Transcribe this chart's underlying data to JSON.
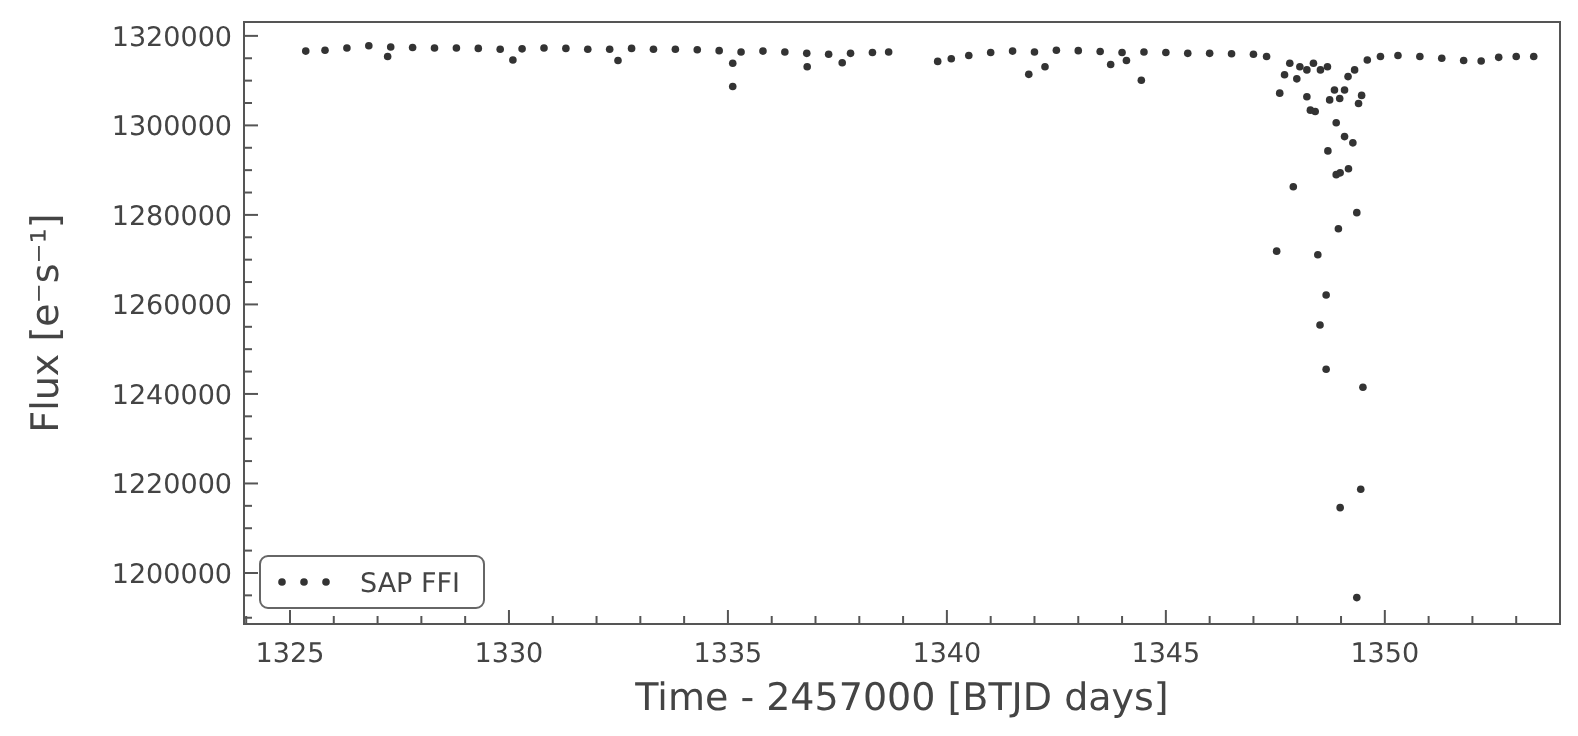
{
  "chart_data": {
    "type": "scatter",
    "xlabel": "Time - 2457000 [BTJD days]",
    "ylabel": "Flux [e⁻s⁻¹]",
    "xlim": [
      1323.95,
      1354.0
    ],
    "ylim": [
      1188600,
      1323100
    ],
    "xticks": [
      {
        "value": 1324,
        "label": null
      },
      1325,
      {
        "value": 1326,
        "label": null
      },
      {
        "value": 1327,
        "label": null
      },
      {
        "value": 1328,
        "label": null
      },
      {
        "value": 1329,
        "label": null
      },
      1330,
      {
        "value": 1331,
        "label": null
      },
      {
        "value": 1332,
        "label": null
      },
      {
        "value": 1333,
        "label": null
      },
      {
        "value": 1334,
        "label": null
      },
      1335,
      {
        "value": 1336,
        "label": null
      },
      {
        "value": 1337,
        "label": null
      },
      {
        "value": 1338,
        "label": null
      },
      {
        "value": 1339,
        "label": null
      },
      1340,
      {
        "value": 1341,
        "label": null
      },
      {
        "value": 1342,
        "label": null
      },
      {
        "value": 1343,
        "label": null
      },
      {
        "value": 1344,
        "label": null
      },
      1345,
      {
        "value": 1346,
        "label": null
      },
      {
        "value": 1347,
        "label": null
      },
      {
        "value": 1348,
        "label": null
      },
      {
        "value": 1349,
        "label": null
      },
      1350,
      {
        "value": 1351,
        "label": null
      },
      {
        "value": 1352,
        "label": null
      },
      {
        "value": 1353,
        "label": null
      },
      {
        "value": 1354,
        "label": null
      }
    ],
    "yticks": [
      {
        "value": 1190000,
        "label": null
      },
      {
        "value": 1195000,
        "label": null
      },
      1200000,
      {
        "value": 1205000,
        "label": null
      },
      {
        "value": 1210000,
        "label": null
      },
      {
        "value": 1215000,
        "label": null
      },
      1220000,
      {
        "value": 1225000,
        "label": null
      },
      {
        "value": 1230000,
        "label": null
      },
      {
        "value": 1235000,
        "label": null
      },
      1240000,
      {
        "value": 1245000,
        "label": null
      },
      {
        "value": 1250000,
        "label": null
      },
      {
        "value": 1255000,
        "label": null
      },
      1260000,
      {
        "value": 1265000,
        "label": null
      },
      {
        "value": 1270000,
        "label": null
      },
      {
        "value": 1275000,
        "label": null
      },
      1280000,
      {
        "value": 1285000,
        "label": null
      },
      {
        "value": 1290000,
        "label": null
      },
      {
        "value": 1295000,
        "label": null
      },
      1300000,
      {
        "value": 1305000,
        "label": null
      },
      {
        "value": 1310000,
        "label": null
      },
      {
        "value": 1315000,
        "label": null
      },
      1320000
    ],
    "grid": false,
    "legend": "bottom left",
    "marker": "circle",
    "series": [
      {
        "name": "SAP FFI",
        "color": "#333333",
        "x": [
          1325.36,
          1325.8,
          1326.3,
          1326.8,
          1327.3,
          1327.8,
          1328.3,
          1328.8,
          1329.3,
          1329.8,
          1330.3,
          1330.8,
          1331.3,
          1331.8,
          1332.3,
          1332.8,
          1333.3,
          1333.8,
          1334.3,
          1334.8,
          1335.3,
          1335.8,
          1336.3,
          1336.8,
          1337.3,
          1337.8,
          1338.3,
          1338.67,
          1327.23,
          1330.09,
          1332.49,
          1335.11,
          1335.11,
          1336.81,
          1337.61,
          1339.79,
          1340.1,
          1340.5,
          1341.0,
          1341.5,
          1342.0,
          1342.5,
          1343.0,
          1343.5,
          1344.0,
          1344.5,
          1345.0,
          1345.5,
          1346.0,
          1346.5,
          1347.0,
          1347.3,
          1349.6,
          1349.9,
          1350.3,
          1350.8,
          1351.3,
          1351.8,
          1352.2,
          1352.6,
          1353.0,
          1353.4,
          1341.87,
          1342.24,
          1343.74,
          1344.1,
          1344.44,
          1348.89,
          1349.08,
          1349.27,
          1348.7,
          1349.17,
          1348.89,
          1348.98,
          1347.91,
          1349.36,
          1348.94,
          1347.53,
          1348.47,
          1348.66,
          1348.52,
          1348.66,
          1349.5,
          1349.45,
          1348.98,
          1349.36,
          1347.6,
          1347.71,
          1347.99,
          1348.22,
          1348.3,
          1348.41,
          1348.53,
          1348.74,
          1348.85,
          1348.97,
          1349.08,
          1349.16,
          1349.31,
          1349.47,
          1349.4,
          1348.69,
          1348.22,
          1347.83,
          1348.06,
          1348.37
        ],
        "values": [
          1316600,
          1316800,
          1317300,
          1317800,
          1317500,
          1317400,
          1317300,
          1317300,
          1317200,
          1317000,
          1317100,
          1317300,
          1317200,
          1317000,
          1317000,
          1317200,
          1317000,
          1317000,
          1316900,
          1316700,
          1316400,
          1316600,
          1316400,
          1316100,
          1315900,
          1316100,
          1316300,
          1316400,
          1315400,
          1314600,
          1314500,
          1313900,
          1308700,
          1313100,
          1314000,
          1314300,
          1314900,
          1315600,
          1316300,
          1316600,
          1316400,
          1316800,
          1316700,
          1316500,
          1316300,
          1316400,
          1316300,
          1316100,
          1316100,
          1316000,
          1315900,
          1315400,
          1314600,
          1315400,
          1315600,
          1315400,
          1315000,
          1314500,
          1314400,
          1315200,
          1315400,
          1315400,
          1311400,
          1313100,
          1313600,
          1314500,
          1310100,
          1300600,
          1297500,
          1296100,
          1294300,
          1290300,
          1289000,
          1289400,
          1286300,
          1280500,
          1276900,
          1271900,
          1271100,
          1262100,
          1255400,
          1245500,
          1241500,
          1218700,
          1214600,
          1194500,
          1307200,
          1311300,
          1310400,
          1306400,
          1303400,
          1303100,
          1312400,
          1305700,
          1307900,
          1306000,
          1307900,
          1310900,
          1312400,
          1306700,
          1304900,
          1313100,
          1312400,
          1313900,
          1313100,
          1313900
        ]
      }
    ]
  }
}
